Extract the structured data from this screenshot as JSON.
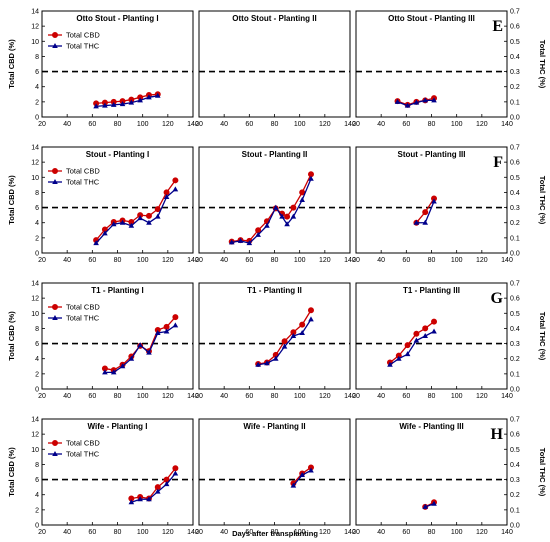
{
  "figure": {
    "x_axis_label": "Days after transplanting",
    "left_axis_label": "Total CBD (%)",
    "right_axis_label": "Total THC (%)",
    "x_ticks": [
      "20",
      "40",
      "60",
      "80",
      "100",
      "120",
      "140"
    ],
    "left_ticks": [
      "0",
      "2",
      "4",
      "6",
      "8",
      "10",
      "12",
      "14"
    ],
    "right_ticks": [
      "0.0",
      "0.1",
      "0.2",
      "0.3",
      "0.4",
      "0.5",
      "0.6",
      "0.7"
    ],
    "row_labels": [
      "E",
      "F",
      "G",
      "H"
    ],
    "legend": {
      "cbd": "Total CBD",
      "thc": "Total THC"
    },
    "colors": {
      "cbd": "#cc0000",
      "thc": "#00008b",
      "threshold": "#000000"
    }
  },
  "chart_data": [
    {
      "type": "line",
      "row": 0,
      "col": 0,
      "title": "Otto Stout - Planting I",
      "xlim": [
        20,
        140
      ],
      "ylim": [
        0,
        14
      ],
      "y2lim": [
        0,
        0.7
      ],
      "threshold": 6,
      "legend": true,
      "series": [
        {
          "name": "Total CBD",
          "x": [
            63,
            70,
            77,
            84,
            91,
            98,
            105,
            112
          ],
          "values": [
            1.8,
            1.9,
            2.0,
            2.1,
            2.3,
            2.6,
            2.9,
            3.0
          ]
        },
        {
          "name": "Total THC",
          "x": [
            63,
            70,
            77,
            84,
            91,
            98,
            105,
            112
          ],
          "values": [
            0.07,
            0.075,
            0.08,
            0.085,
            0.095,
            0.11,
            0.13,
            0.14
          ]
        }
      ]
    },
    {
      "type": "line",
      "row": 0,
      "col": 1,
      "title": "Otto Stout - Planting II",
      "xlim": [
        20,
        140
      ],
      "ylim": [
        0,
        14
      ],
      "y2lim": [
        0,
        0.7
      ],
      "threshold": 6,
      "legend": false,
      "series": []
    },
    {
      "type": "line",
      "row": 0,
      "col": 2,
      "title": "Otto Stout - Planting III",
      "xlim": [
        20,
        140
      ],
      "ylim": [
        0,
        14
      ],
      "y2lim": [
        0,
        0.7
      ],
      "threshold": 6,
      "legend": false,
      "series": [
        {
          "name": "Total CBD",
          "x": [
            53,
            61,
            68,
            75,
            82
          ],
          "values": [
            2.1,
            1.6,
            2.0,
            2.2,
            2.5
          ]
        },
        {
          "name": "Total THC",
          "x": [
            53,
            61,
            68,
            75,
            82
          ],
          "values": [
            0.1,
            0.075,
            0.095,
            0.11,
            0.11
          ]
        }
      ]
    },
    {
      "type": "line",
      "row": 1,
      "col": 0,
      "title": "Stout - Planting I",
      "xlim": [
        20,
        140
      ],
      "ylim": [
        0,
        14
      ],
      "y2lim": [
        0,
        0.7
      ],
      "threshold": 6,
      "legend": true,
      "series": [
        {
          "name": "Total CBD",
          "x": [
            63,
            70,
            77,
            84,
            91,
            98,
            105,
            112,
            119,
            126
          ],
          "values": [
            1.7,
            3.1,
            4.1,
            4.3,
            4.1,
            5.0,
            4.9,
            5.8,
            8.0,
            9.6
          ]
        },
        {
          "name": "Total THC",
          "x": [
            63,
            70,
            77,
            84,
            91,
            98,
            105,
            112,
            119,
            126
          ],
          "values": [
            0.065,
            0.13,
            0.19,
            0.2,
            0.18,
            0.23,
            0.2,
            0.24,
            0.37,
            0.42
          ]
        }
      ]
    },
    {
      "type": "line",
      "row": 1,
      "col": 1,
      "title": "Stout - Planting II",
      "xlim": [
        20,
        140
      ],
      "ylim": [
        0,
        14
      ],
      "y2lim": [
        0,
        0.7
      ],
      "threshold": 6,
      "legend": false,
      "series": [
        {
          "name": "Total CBD",
          "x": [
            46,
            53,
            60,
            67,
            74,
            81,
            86,
            90,
            95,
            102,
            109
          ],
          "values": [
            1.5,
            1.7,
            1.6,
            3.0,
            4.2,
            5.9,
            5.2,
            4.8,
            6.0,
            8.0,
            10.4
          ]
        },
        {
          "name": "Total THC",
          "x": [
            46,
            53,
            60,
            67,
            74,
            81,
            86,
            90,
            95,
            102,
            109
          ],
          "values": [
            0.07,
            0.08,
            0.065,
            0.12,
            0.18,
            0.3,
            0.24,
            0.19,
            0.24,
            0.35,
            0.49
          ]
        }
      ]
    },
    {
      "type": "line",
      "row": 1,
      "col": 2,
      "title": "Stout - Planting III",
      "xlim": [
        20,
        140
      ],
      "ylim": [
        0,
        14
      ],
      "y2lim": [
        0,
        0.7
      ],
      "threshold": 6,
      "legend": false,
      "series": [
        {
          "name": "Total CBD",
          "x": [
            68,
            75,
            82
          ],
          "values": [
            4.0,
            5.4,
            7.2
          ]
        },
        {
          "name": "Total THC",
          "x": [
            68,
            75,
            82
          ],
          "values": [
            0.2,
            0.2,
            0.34
          ]
        }
      ]
    },
    {
      "type": "line",
      "row": 2,
      "col": 0,
      "title": "T1 - Planting I",
      "xlim": [
        20,
        140
      ],
      "ylim": [
        0,
        14
      ],
      "y2lim": [
        0,
        0.7
      ],
      "threshold": 6,
      "legend": true,
      "series": [
        {
          "name": "Total CBD",
          "x": [
            70,
            77,
            84,
            91,
            98,
            105,
            112,
            119,
            126
          ],
          "values": [
            2.7,
            2.5,
            3.2,
            4.3,
            5.7,
            5.0,
            7.8,
            8.2,
            9.5
          ]
        },
        {
          "name": "Total THC",
          "x": [
            70,
            77,
            84,
            91,
            98,
            105,
            112,
            119,
            126
          ],
          "values": [
            0.11,
            0.11,
            0.15,
            0.2,
            0.29,
            0.24,
            0.37,
            0.38,
            0.42
          ]
        }
      ]
    },
    {
      "type": "line",
      "row": 2,
      "col": 1,
      "title": "T1 - Planting II",
      "xlim": [
        20,
        140
      ],
      "ylim": [
        0,
        14
      ],
      "y2lim": [
        0,
        0.7
      ],
      "threshold": 6,
      "legend": false,
      "series": [
        {
          "name": "Total CBD",
          "x": [
            67,
            74,
            81,
            88,
            95,
            102,
            109
          ],
          "values": [
            3.3,
            3.5,
            4.5,
            6.3,
            7.5,
            8.5,
            10.4
          ]
        },
        {
          "name": "Total THC",
          "x": [
            67,
            74,
            81,
            88,
            95,
            102,
            109
          ],
          "values": [
            0.16,
            0.17,
            0.2,
            0.28,
            0.35,
            0.37,
            0.46
          ]
        }
      ]
    },
    {
      "type": "line",
      "row": 2,
      "col": 2,
      "title": "T1 - Planting III",
      "xlim": [
        20,
        140
      ],
      "ylim": [
        0,
        14
      ],
      "y2lim": [
        0,
        0.7
      ],
      "threshold": 6,
      "legend": false,
      "series": [
        {
          "name": "Total CBD",
          "x": [
            47,
            54,
            61,
            68,
            75,
            82
          ],
          "values": [
            3.5,
            4.4,
            5.8,
            7.3,
            8.0,
            8.9
          ]
        },
        {
          "name": "Total THC",
          "x": [
            47,
            54,
            61,
            68,
            75,
            82
          ],
          "values": [
            0.16,
            0.2,
            0.23,
            0.32,
            0.35,
            0.38
          ]
        }
      ]
    },
    {
      "type": "line",
      "row": 3,
      "col": 0,
      "title": "Wife - Planting I",
      "xlim": [
        20,
        140
      ],
      "ylim": [
        0,
        14
      ],
      "y2lim": [
        0,
        0.7
      ],
      "threshold": 6,
      "legend": true,
      "series": [
        {
          "name": "Total CBD",
          "x": [
            91,
            98,
            105,
            112,
            119,
            126
          ],
          "values": [
            3.5,
            3.7,
            3.5,
            5.0,
            6.0,
            7.5
          ]
        },
        {
          "name": "Total THC",
          "x": [
            91,
            98,
            105,
            112,
            119,
            126
          ],
          "values": [
            0.15,
            0.17,
            0.17,
            0.22,
            0.27,
            0.34
          ]
        }
      ]
    },
    {
      "type": "line",
      "row": 3,
      "col": 1,
      "title": "Wife - Planting II",
      "xlim": [
        20,
        140
      ],
      "ylim": [
        0,
        14
      ],
      "y2lim": [
        0,
        0.7
      ],
      "threshold": 6,
      "legend": false,
      "series": [
        {
          "name": "Total CBD",
          "x": [
            95,
            102,
            109
          ],
          "values": [
            5.5,
            6.8,
            7.6
          ]
        },
        {
          "name": "Total THC",
          "x": [
            95,
            102,
            109
          ],
          "values": [
            0.26,
            0.33,
            0.36
          ]
        }
      ]
    },
    {
      "type": "line",
      "row": 3,
      "col": 2,
      "title": "Wife - Planting III",
      "xlim": [
        20,
        140
      ],
      "ylim": [
        0,
        14
      ],
      "y2lim": [
        0,
        0.7
      ],
      "threshold": 6,
      "legend": false,
      "series": [
        {
          "name": "Total CBD",
          "x": [
            75,
            82
          ],
          "values": [
            2.4,
            3.0
          ]
        },
        {
          "name": "Total THC",
          "x": [
            75,
            82
          ],
          "values": [
            0.12,
            0.14
          ]
        }
      ]
    }
  ]
}
